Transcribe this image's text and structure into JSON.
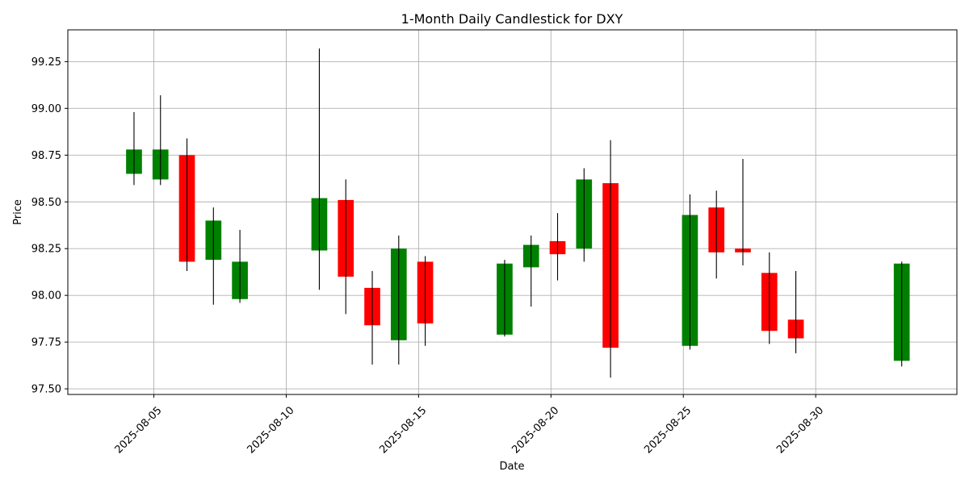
{
  "chart_data": {
    "type": "candlestick",
    "title": "1-Month Daily Candlestick for DXY",
    "xlabel": "Date",
    "ylabel": "Price",
    "xlim": [
      "2025-08-01T18:00",
      "2025-09-04T08:00"
    ],
    "ylim": [
      97.47,
      99.42
    ],
    "y_ticks": [
      97.5,
      97.75,
      98.0,
      98.25,
      98.5,
      98.75,
      99.0,
      99.25
    ],
    "y_tick_labels": [
      "97.50",
      "97.75",
      "98.00",
      "98.25",
      "98.50",
      "98.75",
      "99.00",
      "99.25"
    ],
    "x_ticks": [
      "2025-08-05",
      "2025-08-10",
      "2025-08-15",
      "2025-08-20",
      "2025-08-25",
      "2025-08-30"
    ],
    "grid": true,
    "colors": {
      "up": "#008000",
      "down": "#ff0000",
      "wick": "#000000",
      "grid": "#b0b0b0"
    },
    "candles": [
      {
        "date": "2025-08-04T06:00",
        "open": 98.65,
        "high": 98.98,
        "low": 98.59,
        "close": 98.78
      },
      {
        "date": "2025-08-05T06:00",
        "open": 98.62,
        "high": 99.07,
        "low": 98.59,
        "close": 98.78
      },
      {
        "date": "2025-08-06T06:00",
        "open": 98.75,
        "high": 98.84,
        "low": 98.13,
        "close": 98.18
      },
      {
        "date": "2025-08-07T06:00",
        "open": 98.19,
        "high": 98.47,
        "low": 97.95,
        "close": 98.4
      },
      {
        "date": "2025-08-08T06:00",
        "open": 97.98,
        "high": 98.35,
        "low": 97.96,
        "close": 98.18
      },
      {
        "date": "2025-08-11T06:00",
        "open": 98.24,
        "high": 99.32,
        "low": 98.03,
        "close": 98.52
      },
      {
        "date": "2025-08-12T06:00",
        "open": 98.51,
        "high": 98.62,
        "low": 97.9,
        "close": 98.1
      },
      {
        "date": "2025-08-13T06:00",
        "open": 98.04,
        "high": 98.13,
        "low": 97.63,
        "close": 97.84
      },
      {
        "date": "2025-08-14T06:00",
        "open": 97.76,
        "high": 98.32,
        "low": 97.63,
        "close": 98.25
      },
      {
        "date": "2025-08-15T06:00",
        "open": 98.18,
        "high": 98.21,
        "low": 97.73,
        "close": 97.85
      },
      {
        "date": "2025-08-18T06:00",
        "open": 97.79,
        "high": 98.19,
        "low": 97.78,
        "close": 98.17
      },
      {
        "date": "2025-08-19T06:00",
        "open": 98.15,
        "high": 98.32,
        "low": 97.94,
        "close": 98.27
      },
      {
        "date": "2025-08-20T06:00",
        "open": 98.29,
        "high": 98.44,
        "low": 98.08,
        "close": 98.22
      },
      {
        "date": "2025-08-21T06:00",
        "open": 98.25,
        "high": 98.68,
        "low": 98.18,
        "close": 98.62
      },
      {
        "date": "2025-08-22T06:00",
        "open": 98.6,
        "high": 98.83,
        "low": 97.56,
        "close": 97.72
      },
      {
        "date": "2025-08-25T06:00",
        "open": 97.73,
        "high": 98.54,
        "low": 97.71,
        "close": 98.43
      },
      {
        "date": "2025-08-26T06:00",
        "open": 98.47,
        "high": 98.56,
        "low": 98.09,
        "close": 98.23
      },
      {
        "date": "2025-08-27T06:00",
        "open": 98.25,
        "high": 98.73,
        "low": 98.16,
        "close": 98.23
      },
      {
        "date": "2025-08-28T06:00",
        "open": 98.12,
        "high": 98.23,
        "low": 97.74,
        "close": 97.81
      },
      {
        "date": "2025-08-29T06:00",
        "open": 97.87,
        "high": 98.13,
        "low": 97.69,
        "close": 97.77
      },
      {
        "date": "2025-09-02T06:00",
        "open": 97.65,
        "high": 98.18,
        "low": 97.62,
        "close": 98.17
      }
    ]
  }
}
